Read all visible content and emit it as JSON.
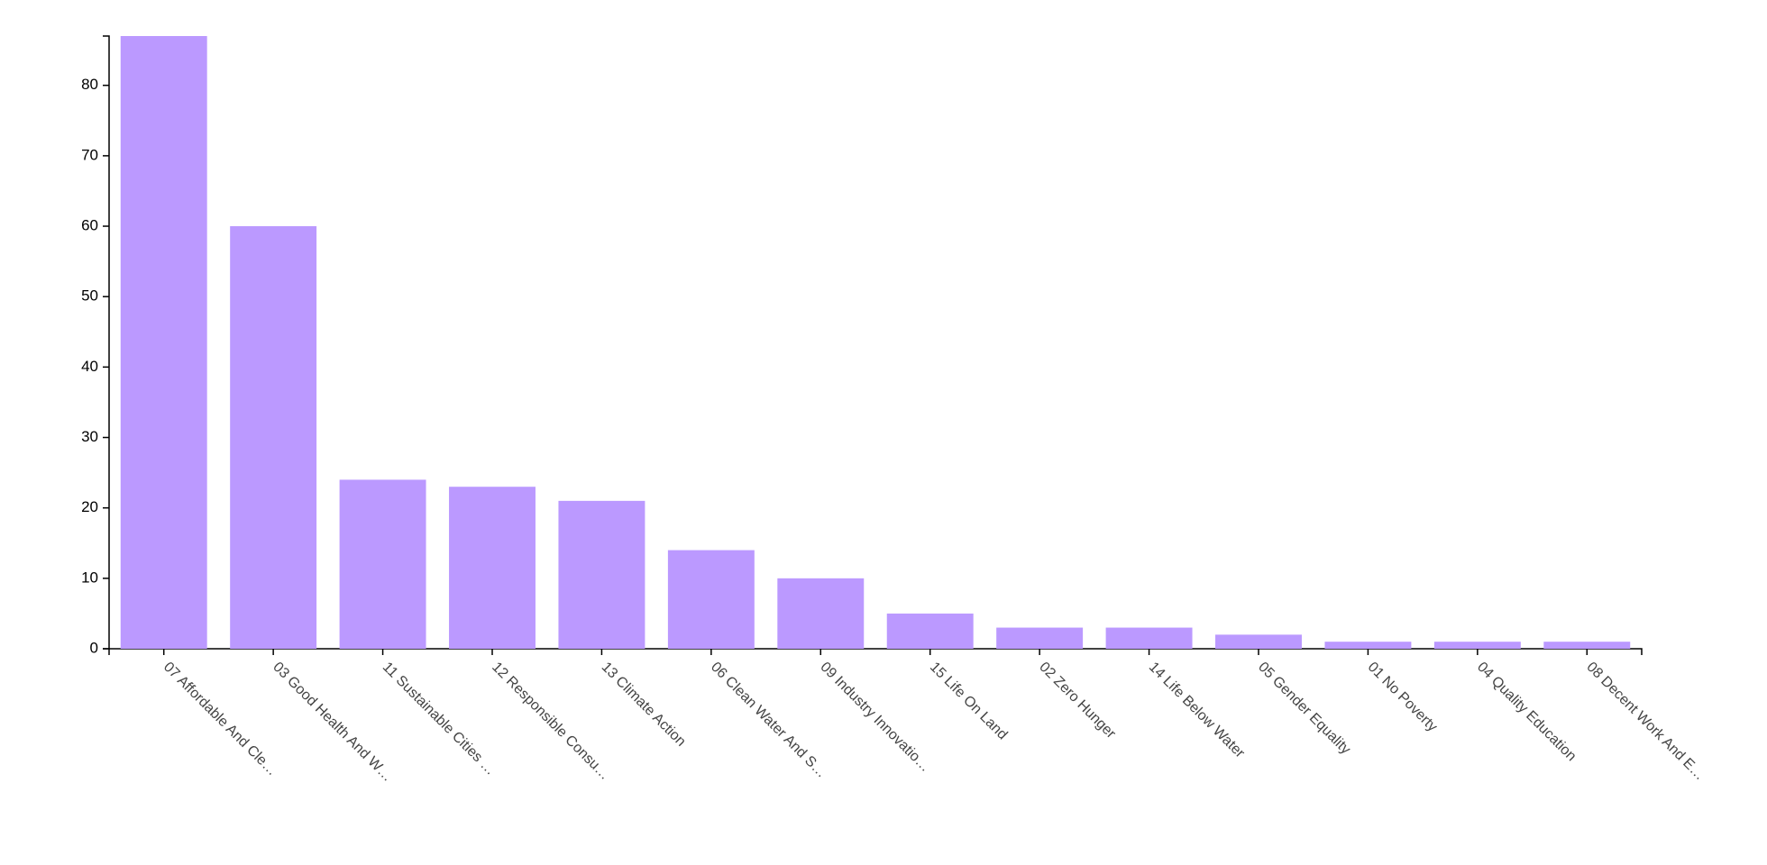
{
  "chart_data": {
    "type": "bar",
    "categories": [
      "07 Affordable And Cle…",
      "03 Good Health And W…",
      "11 Sustainable Cities …",
      "12 Responsible Consu…",
      "13 Climate Action",
      "06 Clean Water And S…",
      "09 Industry Innovatio…",
      "15 Life On Land",
      "02 Zero Hunger",
      "14 Life Below Water",
      "05 Gender Equality",
      "01 No Poverty",
      "04 Quality Education",
      "08 Decent Work And E…"
    ],
    "values": [
      87,
      60,
      24,
      23,
      21,
      14,
      10,
      5,
      3,
      3,
      2,
      1,
      1,
      1
    ],
    "color": "#bb99ff",
    "ylim": [
      0,
      87
    ],
    "yticks": [
      0,
      10,
      20,
      30,
      40,
      50,
      60,
      70,
      80
    ],
    "grid": false
  }
}
